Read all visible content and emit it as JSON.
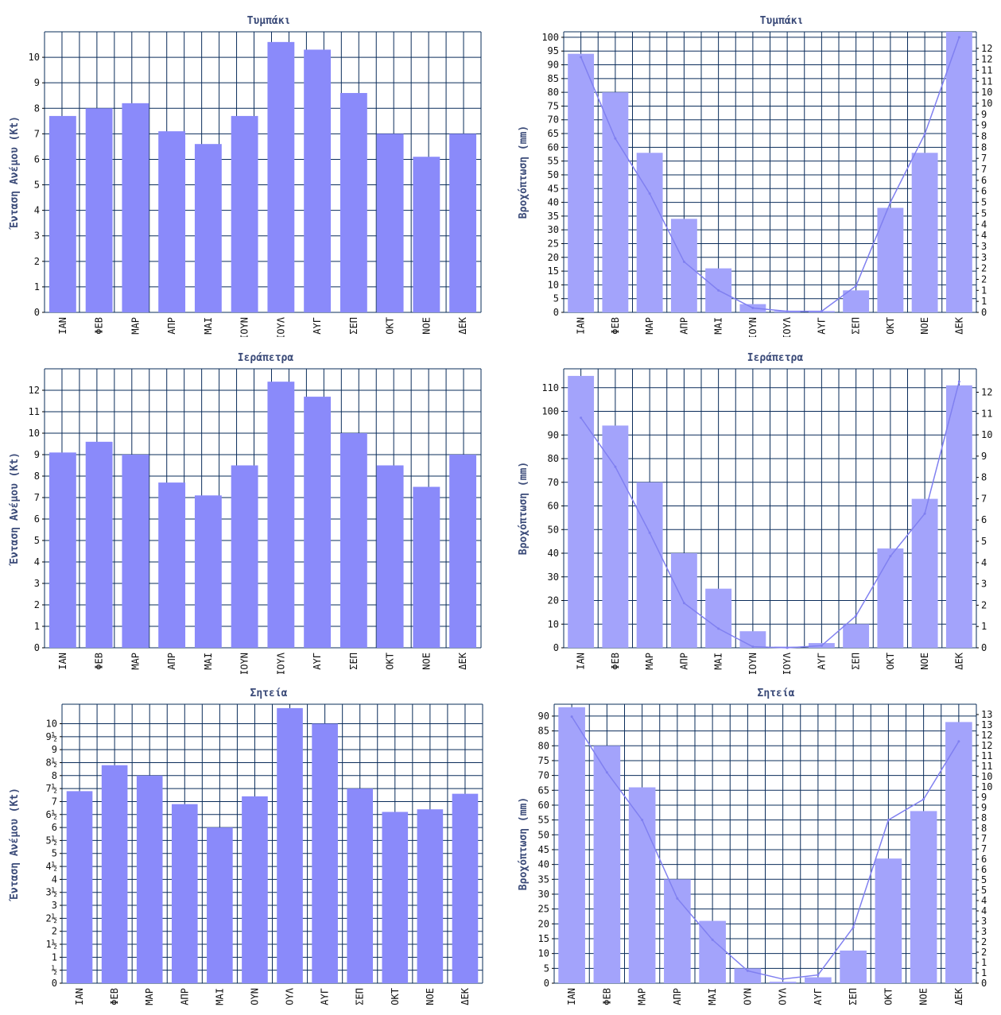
{
  "colors": {
    "bar": "#8a8afa",
    "bar_rain": "#a3a3fb",
    "line": "#8080f0",
    "grid": "#0a2c5a",
    "title": "#3a4a78"
  },
  "chart_data": [
    {
      "type": "bar",
      "title": "Τυμπάκι",
      "ylabel": "Ένταση Ανέμου (Kt)",
      "categories": [
        "ΙΑΝ",
        "ΦΕΒ",
        "ΜΑΡ",
        "ΑΠΡ",
        "ΜΑΙ",
        "ΙΟΥΝ",
        "ΙΟΥΛ",
        "ΑΥΓ",
        "ΣΕΠ",
        "ΟΚΤ",
        "ΝΟΕ",
        "ΔΕΚ"
      ],
      "values": [
        7.7,
        8.0,
        8.2,
        7.1,
        6.6,
        7.7,
        10.6,
        10.3,
        8.6,
        7.0,
        6.1,
        7.0
      ],
      "ylim": [
        0,
        11
      ],
      "yticks": [
        "0",
        "1",
        "2",
        "3",
        "4",
        "5",
        "6",
        "7",
        "8",
        "9",
        "10"
      ],
      "ytick_values": [
        0,
        1,
        2,
        3,
        4,
        5,
        6,
        7,
        8,
        9,
        10
      ],
      "grid": true
    },
    {
      "type": "bar",
      "title": "Τυμπάκι",
      "ylabel": "Βροχόπτωση (mm)",
      "categories": [
        "ΙΑΝ",
        "ΦΕΒ",
        "ΜΑΡ",
        "ΑΠΡ",
        "ΜΑΙ",
        "ΙΟΥΝ",
        "ΙΟΥΛ",
        "ΑΥΓ",
        "ΣΕΠ",
        "ΟΚΤ",
        "ΝΟΕ",
        "ΔΕΚ"
      ],
      "values": [
        94,
        80,
        58,
        34,
        16,
        3,
        0.5,
        0.5,
        8,
        38,
        58,
        102
      ],
      "ylim": [
        0,
        102
      ],
      "yticks": [
        "0",
        "5",
        "10",
        "15",
        "20",
        "25",
        "30",
        "35",
        "40",
        "45",
        "50",
        "55",
        "60",
        "65",
        "70",
        "75",
        "80",
        "85",
        "90",
        "95",
        "100"
      ],
      "ytick_values": [
        0,
        5,
        10,
        15,
        20,
        25,
        30,
        35,
        40,
        45,
        50,
        55,
        60,
        65,
        70,
        75,
        80,
        85,
        90,
        95,
        100
      ],
      "line": [
        11.6,
        7.9,
        5.4,
        2.3,
        1.0,
        0.2,
        0.05,
        0.05,
        1.2,
        5.0,
        8.1,
        12.5
      ],
      "y2lim": [
        0,
        12.75
      ],
      "y2ticks": [
        "0",
        "1",
        "1",
        "2",
        "2",
        "3",
        "3",
        "4",
        "4",
        "5",
        "5",
        "6",
        "6",
        "7",
        "7",
        "8",
        "8",
        "9",
        "9",
        "10",
        "10",
        "11",
        "11",
        "12",
        "12"
      ],
      "y2tick_values": [
        0,
        0.5,
        1,
        1.5,
        2,
        2.5,
        3,
        3.5,
        4,
        4.5,
        5,
        5.5,
        6,
        6.5,
        7,
        7.5,
        8,
        8.5,
        9,
        9.5,
        10,
        10.5,
        11,
        11.5,
        12
      ],
      "grid": true
    },
    {
      "type": "bar",
      "title": "Ιεράπετρα",
      "ylabel": "Ένταση Ανέμου (Kt)",
      "categories": [
        "ΙΑΝ",
        "ΦΕΒ",
        "ΜΑΡ",
        "ΑΠΡ",
        "ΜΑΙ",
        "ΙΟΥΝ",
        "ΙΟΥΛ",
        "ΑΥΓ",
        "ΣΕΠ",
        "ΟΚΤ",
        "ΝΟΕ",
        "ΔΕΚ"
      ],
      "values": [
        9.1,
        9.6,
        9.0,
        7.7,
        7.1,
        8.5,
        12.4,
        11.7,
        10.0,
        8.5,
        7.5,
        9.0
      ],
      "ylim": [
        0,
        13
      ],
      "yticks": [
        "0",
        "1",
        "2",
        "3",
        "4",
        "5",
        "6",
        "7",
        "8",
        "9",
        "10",
        "11",
        "12"
      ],
      "ytick_values": [
        0,
        1,
        2,
        3,
        4,
        5,
        6,
        7,
        8,
        9,
        10,
        11,
        12
      ],
      "grid": true
    },
    {
      "type": "bar",
      "title": "Ιεράπετρα",
      "ylabel": "Βροχόπτωση (mm)",
      "categories": [
        "ΙΑΝ",
        "ΦΕΒ",
        "ΜΑΡ",
        "ΑΠΡ",
        "ΜΑΙ",
        "ΙΟΥΝ",
        "ΙΟΥΛ",
        "ΑΥΓ",
        "ΣΕΠ",
        "ΟΚΤ",
        "ΝΟΕ",
        "ΔΕΚ"
      ],
      "values": [
        115,
        94,
        70,
        40,
        25,
        7,
        0.5,
        2,
        10,
        42,
        63,
        111
      ],
      "ylim": [
        0,
        118
      ],
      "yticks": [
        "0",
        "10",
        "20",
        "30",
        "40",
        "50",
        "60",
        "70",
        "80",
        "90",
        "100",
        "110"
      ],
      "ytick_values": [
        0,
        10,
        20,
        30,
        40,
        50,
        60,
        70,
        80,
        90,
        100,
        110
      ],
      "line": [
        10.8,
        8.5,
        5.4,
        2.1,
        0.9,
        0.05,
        0,
        0.1,
        1.5,
        4.3,
        6.3,
        12.5
      ],
      "y2lim": [
        0,
        13.1
      ],
      "y2ticks": [
        "0",
        "1",
        "2",
        "3",
        "4",
        "5",
        "6",
        "7",
        "8",
        "9",
        "10",
        "11",
        "12"
      ],
      "y2tick_values": [
        0,
        1,
        2,
        3,
        4,
        5,
        6,
        7,
        8,
        9,
        10,
        11,
        12
      ],
      "grid": true
    },
    {
      "type": "bar",
      "title": "Σητεία",
      "ylabel": "Ένταση Ανέμου (Kt)",
      "categories": [
        "ΙΑΝ",
        "ΦΕΒ",
        "ΜΑΡ",
        "ΑΠΡ",
        "ΜΑΙ",
        "ΟΥΝ",
        "ΟΥΛ",
        "ΑΥΓ",
        "ΣΕΠ",
        "ΟΚΤ",
        "ΝΟΕ",
        "ΔΕΚ"
      ],
      "values": [
        7.4,
        8.4,
        8.0,
        6.9,
        6.0,
        7.2,
        10.6,
        10.0,
        7.5,
        6.6,
        6.7,
        7.3
      ],
      "ylim": [
        0,
        10.75
      ],
      "yticks": [
        "0",
        "½",
        "1",
        "1½",
        "2",
        "2½",
        "3",
        "3½",
        "4",
        "4½",
        "5",
        "5½",
        "6",
        "6½",
        "7",
        "7½",
        "8",
        "8½",
        "9",
        "9½",
        "10"
      ],
      "ytick_values": [
        0,
        0.5,
        1,
        1.5,
        2,
        2.5,
        3,
        3.5,
        4,
        4.5,
        5,
        5.5,
        6,
        6.5,
        7,
        7.5,
        8,
        8.5,
        9,
        9.5,
        10
      ],
      "grid": true
    },
    {
      "type": "bar",
      "title": "Σητεία",
      "ylabel": "Βροχόπτωση (mm)",
      "categories": [
        "ΙΑΝ",
        "ΦΕΒ",
        "ΜΑΡ",
        "ΑΠΡ",
        "ΜΑΙ",
        "ΟΥΝ",
        "ΟΥΛ",
        "ΑΥΓ",
        "ΣΕΠ",
        "ΟΚΤ",
        "ΝΟΕ",
        "ΔΕΚ"
      ],
      "values": [
        93,
        80,
        66,
        35,
        21,
        5,
        0.5,
        2,
        11,
        42,
        58,
        88
      ],
      "ylim": [
        0,
        94
      ],
      "yticks": [
        "0",
        "5",
        "10",
        "15",
        "20",
        "25",
        "30",
        "35",
        "40",
        "45",
        "50",
        "55",
        "60",
        "65",
        "70",
        "75",
        "80",
        "85",
        "90"
      ],
      "ytick_values": [
        0,
        5,
        10,
        15,
        20,
        25,
        30,
        35,
        40,
        45,
        50,
        55,
        60,
        65,
        70,
        75,
        80,
        85,
        90
      ],
      "line": [
        12.9,
        10.2,
        7.9,
        4.1,
        2.1,
        0.6,
        0.2,
        0.4,
        2.7,
        7.9,
        8.9,
        11.7
      ],
      "y2lim": [
        0,
        13.5
      ],
      "y2ticks": [
        "0",
        "1",
        "1",
        "2",
        "2",
        "3",
        "3",
        "4",
        "4",
        "5",
        "5",
        "6",
        "6",
        "7",
        "7",
        "8",
        "8",
        "9",
        "9",
        "10",
        "10",
        "11",
        "11",
        "12",
        "12",
        "13",
        "13"
      ],
      "y2tick_values": [
        0,
        0.5,
        1,
        1.5,
        2,
        2.5,
        3,
        3.5,
        4,
        4.5,
        5,
        5.5,
        6,
        6.5,
        7,
        7.5,
        8,
        8.5,
        9,
        9.5,
        10,
        10.5,
        11,
        11.5,
        12,
        12.5,
        13
      ],
      "grid": true
    }
  ]
}
